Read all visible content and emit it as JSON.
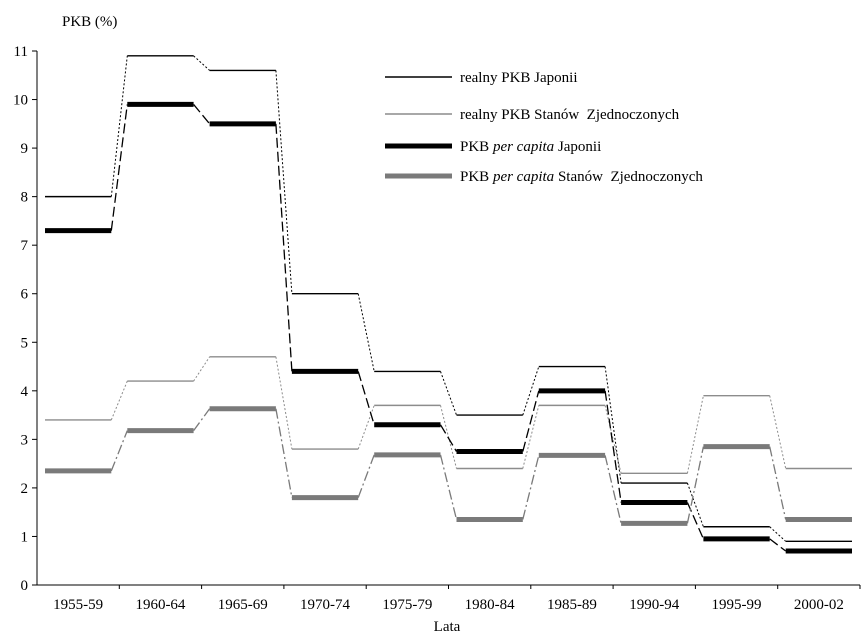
{
  "chart_data": {
    "type": "line",
    "ylabel": "PKB (%)",
    "xlabel": "Lata",
    "ylim": [
      0,
      11
    ],
    "yticks": [
      0,
      1,
      2,
      3,
      4,
      5,
      6,
      7,
      8,
      9,
      10,
      11
    ],
    "categories": [
      "1955-59",
      "1960-64",
      "1965-69",
      "1970-74",
      "1975-79",
      "1980-84",
      "1985-89",
      "1990-94",
      "1995-99",
      "2000-02"
    ],
    "grid": false,
    "legend_position": "top-right",
    "series": [
      {
        "name": "realny PKB Japonii",
        "values": [
          8.0,
          10.9,
          10.6,
          6.0,
          4.4,
          3.5,
          4.5,
          2.1,
          1.2,
          0.9
        ],
        "color": "#000000",
        "style": "thin"
      },
      {
        "name": "realny PKB Stanów  Zjednoczonych",
        "values": [
          3.4,
          4.2,
          4.7,
          2.8,
          3.7,
          2.4,
          3.7,
          2.3,
          3.9,
          2.4
        ],
        "color": "#8c8c8c",
        "style": "thin"
      },
      {
        "name_parts": [
          "PKB ",
          "per capita",
          " Japonii"
        ],
        "values": [
          7.3,
          9.9,
          9.5,
          4.4,
          3.3,
          2.75,
          4.0,
          1.7,
          0.95,
          0.7
        ],
        "color": "#000000",
        "style": "thick"
      },
      {
        "name_parts": [
          "PKB ",
          "per capita",
          " Stanów  Zjednoczonych"
        ],
        "values": [
          2.35,
          3.18,
          3.63,
          1.8,
          2.68,
          1.35,
          2.67,
          1.27,
          2.85,
          1.35
        ],
        "color": "#7a7a7a",
        "style": "thick"
      }
    ]
  }
}
